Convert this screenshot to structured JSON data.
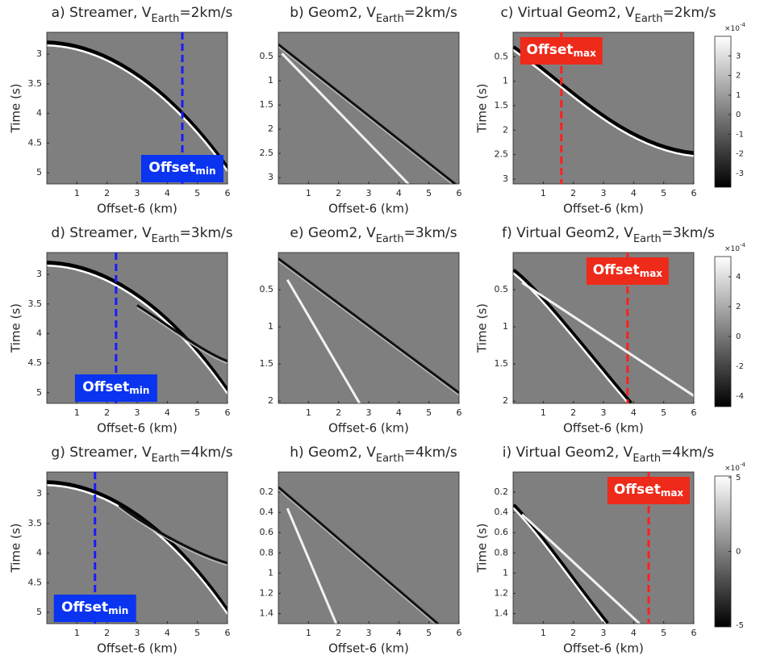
{
  "chart_data": [
    {
      "type": "heatmap",
      "title": {
        "text": "a) Streamer, V",
        "sub": "Earth",
        "end": "=2km/s"
      },
      "xlabel": "Offset-6 (km)",
      "ylabel": "Time (s)",
      "xlim": [
        0,
        6
      ],
      "xticks": [
        1,
        2,
        3,
        4,
        5,
        6
      ],
      "ylim": [
        2.63,
        5.19
      ],
      "yticks": [
        3,
        3.5,
        4,
        4.5,
        5
      ],
      "marker": {
        "x": 4.5,
        "color": "#1a1aff",
        "label": "Offset",
        "label_sub": "min",
        "label_color": "#0a34f0"
      }
    },
    {
      "type": "heatmap",
      "title": {
        "text": "b) Geom2, V",
        "sub": "Earth",
        "end": "=2km/s"
      },
      "xlabel": "Offset-6 (km)",
      "ylabel": null,
      "xlim": [
        0,
        6
      ],
      "xticks": [
        1,
        2,
        3,
        4,
        5,
        6
      ],
      "ylim": [
        0,
        3.13
      ],
      "yticks": [
        0.5,
        1,
        1.5,
        2,
        2.5,
        3
      ]
    },
    {
      "type": "heatmap",
      "title": {
        "text": "c) Virtual Geom2, V",
        "sub": "Earth",
        "end": "=2km/s"
      },
      "xlabel": "Offset-6 (km)",
      "ylabel": "Time (s)",
      "xlim": [
        0,
        6
      ],
      "xticks": [
        1,
        2,
        3,
        4,
        5,
        6
      ],
      "ylim": [
        0,
        3.1
      ],
      "yticks": [
        0.5,
        1,
        1.5,
        2,
        2.5,
        3
      ],
      "marker": {
        "x": 1.6,
        "color": "#ff2020",
        "label": "Offset",
        "label_sub": "max",
        "label_color": "#ee2a1a"
      },
      "colorbar": {
        "lim": [
          -3.7,
          4.0
        ],
        "ticks": [
          -3,
          -2,
          -1,
          0,
          1,
          2,
          3
        ],
        "exponent": {
          "base": "×10",
          "power": "-4"
        }
      }
    },
    {
      "type": "heatmap",
      "title": {
        "text": "d) Streamer, V",
        "sub": "Earth",
        "end": "=3km/s"
      },
      "xlabel": "Offset-6 (km)",
      "ylabel": "Time (s)",
      "xlim": [
        0,
        6
      ],
      "xticks": [
        1,
        2,
        3,
        4,
        5,
        6
      ],
      "ylim": [
        2.63,
        5.18
      ],
      "yticks": [
        3,
        3.5,
        4,
        4.5,
        5
      ],
      "marker": {
        "x": 2.3,
        "color": "#1a1aff",
        "label": "Offset",
        "label_sub": "min",
        "label_color": "#0a34f0"
      }
    },
    {
      "type": "heatmap",
      "title": {
        "text": "e) Geom2, V",
        "sub": "Earth",
        "end": "=3km/s"
      },
      "xlabel": "Offset-6 (km)",
      "ylabel": null,
      "xlim": [
        0,
        6
      ],
      "xticks": [
        1,
        2,
        3,
        4,
        5,
        6
      ],
      "ylim": [
        0,
        2.03
      ],
      "yticks": [
        0.5,
        1,
        1.5,
        2
      ]
    },
    {
      "type": "heatmap",
      "title": {
        "text": "f) Virtual Geom2, V",
        "sub": "Earth",
        "end": "=3km/s"
      },
      "xlabel": "Offset-6 (km)",
      "ylabel": "Time (s)",
      "xlim": [
        0,
        6
      ],
      "xticks": [
        1,
        2,
        3,
        4,
        5,
        6
      ],
      "ylim": [
        0,
        2.03
      ],
      "yticks": [
        0.5,
        1,
        1.5,
        2
      ],
      "marker": {
        "x": 3.8,
        "color": "#ff2020",
        "label": "Offset",
        "label_sub": "max",
        "label_color": "#ee2a1a"
      },
      "colorbar": {
        "lim": [
          -4.7,
          5.35
        ],
        "ticks": [
          -4,
          -2,
          0,
          2,
          4
        ],
        "exponent": {
          "base": "×10",
          "power": "-4"
        }
      }
    },
    {
      "type": "heatmap",
      "title": {
        "text": "g) Streamer, V",
        "sub": "Earth",
        "end": "=4km/s"
      },
      "xlabel": "Offset-6 (km)",
      "ylabel": "Time (s)",
      "xlim": [
        0,
        6
      ],
      "xticks": [
        1,
        2,
        3,
        4,
        5,
        6
      ],
      "ylim": [
        2.63,
        5.19
      ],
      "yticks": [
        3,
        3.5,
        4,
        4.5,
        5
      ],
      "marker": {
        "x": 1.6,
        "color": "#1a1aff",
        "label": "Offset",
        "label_sub": "min",
        "label_color": "#0a34f0"
      }
    },
    {
      "type": "heatmap",
      "title": {
        "text": "h) Geom2, V",
        "sub": "Earth",
        "end": "=4km/s"
      },
      "xlabel": "Offset-6 (km)",
      "ylabel": null,
      "xlim": [
        0,
        6
      ],
      "xticks": [
        1,
        2,
        3,
        4,
        5,
        6
      ],
      "ylim": [
        0,
        1.5
      ],
      "yticks": [
        0.2,
        0.4,
        0.6,
        0.8,
        1,
        1.2,
        1.4
      ]
    },
    {
      "type": "heatmap",
      "title": {
        "text": "i) Virtual Geom2, V",
        "sub": "Earth",
        "end": "=4km/s"
      },
      "xlabel": "Offset-6 (km)",
      "ylabel": "Time (s)",
      "xlim": [
        0,
        6
      ],
      "xticks": [
        1,
        2,
        3,
        4,
        5,
        6
      ],
      "ylim": [
        0,
        1.5
      ],
      "yticks": [
        0.2,
        0.4,
        0.6,
        0.8,
        1,
        1.2,
        1.4
      ],
      "marker": {
        "x": 4.5,
        "color": "#ff2020",
        "label": "Offset",
        "label_sub": "max",
        "label_color": "#ee2a1a"
      },
      "colorbar": {
        "lim": [
          -5.1,
          5.1
        ],
        "ticks": [
          -5,
          0,
          5
        ],
        "exponent": {
          "base": "×10",
          "power": "-4"
        }
      }
    }
  ]
}
